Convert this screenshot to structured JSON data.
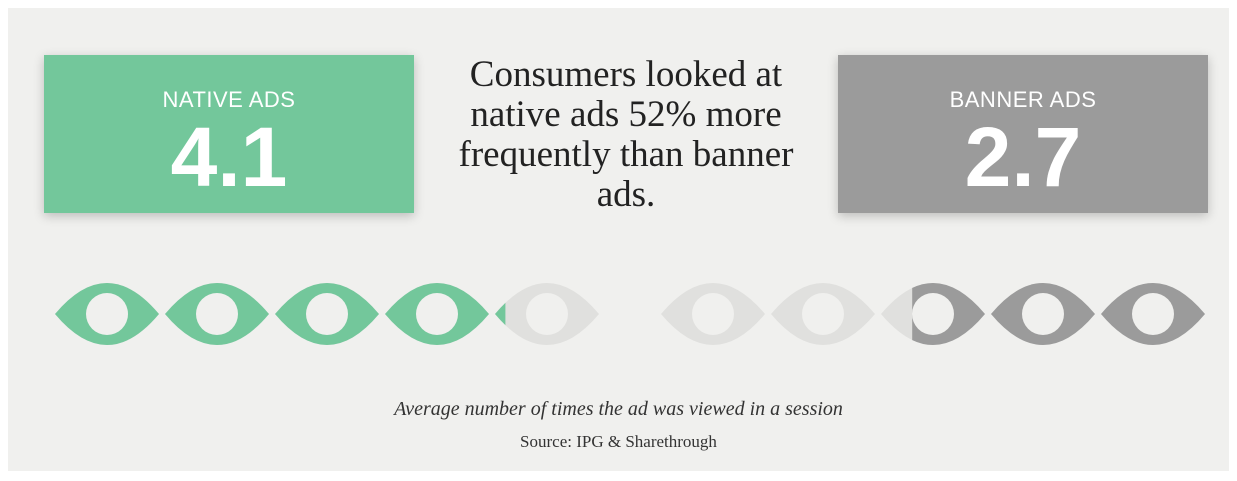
{
  "native": {
    "label": "NATIVE ADS",
    "value": "4.1"
  },
  "banner": {
    "label": "BANNER ADS",
    "value": "2.7"
  },
  "headline": "Consumers looked at native ads 52% more frequently than banner ads.",
  "caption": "Average number of times the ad was viewed in a session",
  "source": "Source: IPG & Sharethrough",
  "chart_data": {
    "type": "bar",
    "categories": [
      "NATIVE ADS",
      "BANNER ADS"
    ],
    "values": [
      4.1,
      2.7
    ],
    "xlabel": "",
    "ylabel": "Average number of times the ad was viewed in a session"
  },
  "colors": {
    "native": "#73c79b",
    "banner": "#9b9b9b",
    "placeholder": "#e0e0de",
    "background": "#f0f0ee"
  },
  "icons": {
    "eye": "eye-icon"
  }
}
